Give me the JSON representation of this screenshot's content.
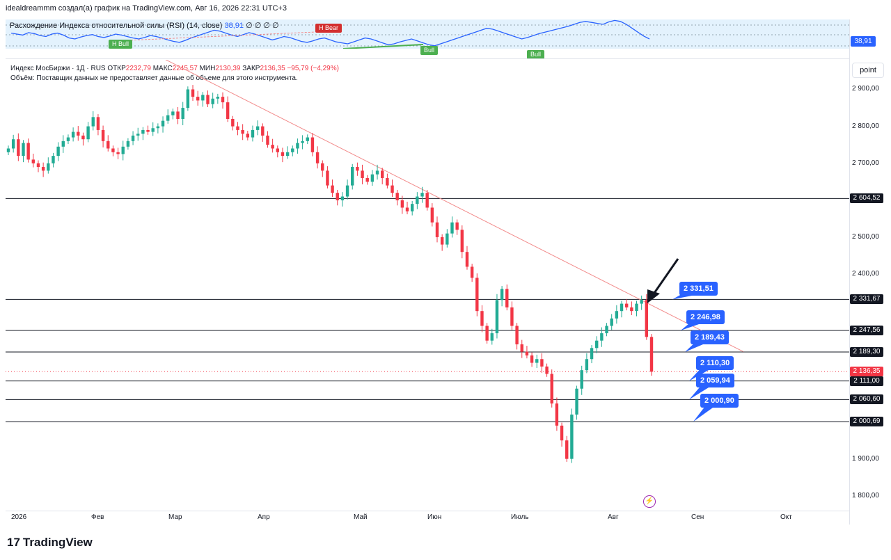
{
  "header": {
    "attribution": "idealdreammm создал(а) график на TradingView.com, Авг 16, 2026 22:31 UTC+3"
  },
  "rsi": {
    "label": "Расхождение Индекса относительной силы (RSI) (14, close)",
    "value": "38,91",
    "extra": "∅ ∅ ∅ ∅",
    "badge": "38,91",
    "tags": {
      "h_bull": "H Bull",
      "h_bear": "H Bear",
      "bull1": "Bull",
      "bull2": "Bull"
    },
    "series": [
      62,
      60,
      58,
      63,
      61,
      57,
      55,
      60,
      62,
      58,
      52,
      50,
      54,
      57,
      59,
      55,
      53,
      56,
      60,
      58,
      55,
      52,
      50,
      53,
      57,
      55,
      52,
      48,
      45,
      43,
      47,
      52,
      56,
      60,
      64,
      68,
      66,
      62,
      58,
      55,
      59,
      63,
      60,
      56,
      52,
      48,
      51,
      55,
      53,
      49,
      45,
      43,
      46,
      50,
      52,
      48,
      44,
      42,
      40,
      44,
      48,
      52,
      50,
      46,
      42,
      38,
      40,
      44,
      47,
      50,
      46,
      42,
      38,
      36,
      40,
      44,
      48,
      52,
      56,
      60,
      64,
      68,
      72,
      70,
      66,
      62,
      58,
      54,
      50,
      53,
      57,
      61,
      64,
      67,
      70,
      73,
      76,
      80,
      84,
      86,
      84,
      82,
      80,
      85,
      88,
      86,
      80,
      72,
      64,
      56,
      50
    ]
  },
  "legend": {
    "instrument": "Индекс МосБиржи · 1Д · RUS",
    "open_label": "ОТКР",
    "open": "2232,79",
    "high_label": "МАКС",
    "high": "2245,57",
    "low_label": "МИН",
    "low": "2130,39",
    "close_label": "ЗАКР",
    "close": "2136,35",
    "change": "−95,79 (−4,29%)",
    "volume_note": "Объём: Поставщик данных не предоставляет данные об объеме для этого инструмента."
  },
  "toolbar": {
    "point_label": "point"
  },
  "axis": {
    "y_ticks": [
      "2 900,00",
      "2 800,00",
      "2 700,00",
      "2 500,00",
      "2 400,00",
      "1 900,00",
      "1 800,00"
    ],
    "y_tick_values": [
      2900,
      2800,
      2700,
      2500,
      2400,
      1900,
      1800
    ],
    "x_ticks": [
      "2026",
      "Фев",
      "Мар",
      "Апр",
      "Май",
      "Июн",
      "Июль",
      "Авг",
      "Сен",
      "Окт"
    ],
    "badges": [
      {
        "text": "2 604,52",
        "value": 2604.52,
        "style": "dark"
      },
      {
        "text": "2 331,67",
        "value": 2331.67,
        "style": "dark"
      },
      {
        "text": "2 247,56",
        "value": 2247.56,
        "style": "dark"
      },
      {
        "text": "2 189,30",
        "value": 2189.3,
        "style": "dark"
      },
      {
        "text": "2 136,35",
        "value": 2136.35,
        "style": "red"
      },
      {
        "text": "2 111,00",
        "value": 2111.0,
        "style": "dark"
      },
      {
        "text": "2 060,60",
        "value": 2060.6,
        "style": "dark"
      },
      {
        "text": "2 000,69",
        "value": 2000.69,
        "style": "dark"
      }
    ]
  },
  "callouts": [
    "2 331,51",
    "2 246,98",
    "2 189,43",
    "2 110,30",
    "2 059,94",
    "2 000,90"
  ],
  "branding": {
    "logo": "TradingView"
  },
  "colors": {
    "up": "#22ab94",
    "down": "#f23645",
    "accent": "#2962ff",
    "trendline": "#f28b8b"
  },
  "chart_data": {
    "type": "candlestick",
    "ylim": [
      1760,
      2980
    ],
    "horizontal_levels": [
      2604.52,
      2331.67,
      2247.56,
      2189.3,
      2111.0,
      2060.6,
      2000.69
    ],
    "trendline": {
      "from": {
        "x": "2026-02-26",
        "y": 2820
      },
      "to": {
        "x": "2026-09-23",
        "y": 2190
      }
    },
    "closes": [
      2740,
      2765,
      2720,
      2755,
      2710,
      2700,
      2690,
      2680,
      2700,
      2720,
      2745,
      2760,
      2770,
      2785,
      2775,
      2765,
      2800,
      2825,
      2790,
      2760,
      2740,
      2730,
      2725,
      2745,
      2760,
      2775,
      2780,
      2790,
      2785,
      2795,
      2800,
      2815,
      2830,
      2840,
      2820,
      2850,
      2900,
      2880,
      2870,
      2885,
      2860,
      2875,
      2880,
      2865,
      2820,
      2800,
      2790,
      2780,
      2770,
      2790,
      2800,
      2775,
      2750,
      2740,
      2730,
      2720,
      2730,
      2740,
      2755,
      2760,
      2770,
      2730,
      2700,
      2680,
      2640,
      2620,
      2600,
      2610,
      2640,
      2690,
      2680,
      2660,
      2650,
      2670,
      2680,
      2660,
      2640,
      2620,
      2600,
      2580,
      2570,
      2590,
      2610,
      2620,
      2580,
      2540,
      2500,
      2480,
      2510,
      2540,
      2520,
      2460,
      2420,
      2390,
      2300,
      2260,
      2220,
      2240,
      2330,
      2360,
      2310,
      2260,
      2210,
      2190,
      2180,
      2160,
      2170,
      2150,
      2130,
      2050,
      1990,
      1950,
      1900,
      2020,
      2090,
      2140,
      2170,
      2200,
      2220,
      2240,
      2260,
      2280,
      2300,
      2320,
      2310,
      2300,
      2320,
      2330,
      2230,
      2136
    ]
  }
}
